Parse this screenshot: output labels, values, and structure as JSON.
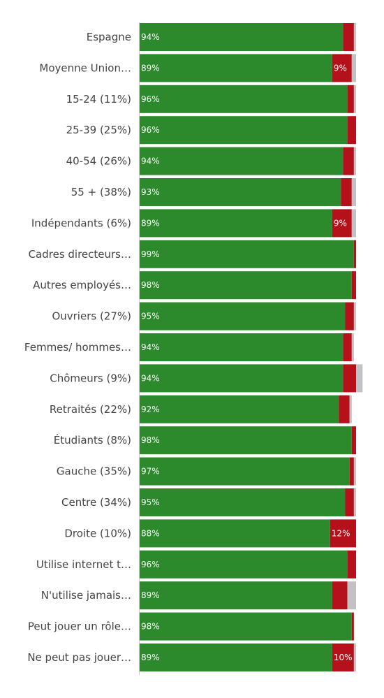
{
  "chart_data": {
    "type": "bar",
    "orientation": "horizontal",
    "stacked": true,
    "normalized": true,
    "grid": false,
    "legend": "none",
    "xlim": [
      0,
      100
    ],
    "categories": [
      "Espagne",
      "Moyenne Union…",
      "15-24 (11%)",
      "25-39 (25%)",
      "40-54 (26%)",
      "55 + (38%)",
      "Indépendants (6%)",
      "Cadres directeurs…",
      "Autres employés…",
      "Ouvriers (27%)",
      "Femmes/ hommes…",
      "Chômeurs (9%)",
      "Retraités (22%)",
      "Étudiants (8%)",
      "Gauche (35%)",
      "Centre (34%)",
      "Droite (10%)",
      "Utilise internet t…",
      "N'utilise jamais…",
      "Peut jouer un rôle…",
      "Ne peut pas jouer…"
    ],
    "series": [
      {
        "color": "#2c8a2c",
        "values": [
          94,
          89,
          96,
          96,
          94,
          93,
          89,
          99,
          98,
          95,
          94,
          94,
          92,
          98,
          97,
          95,
          88,
          96,
          89,
          98,
          89
        ],
        "labels": [
          "94%",
          "89%",
          "96%",
          "96%",
          "94%",
          "93%",
          "89%",
          "99%",
          "98%",
          "95%",
          "94%",
          "94%",
          "92%",
          "98%",
          "97%",
          "95%",
          "88%",
          "96%",
          "89%",
          "98%",
          "89%"
        ]
      },
      {
        "color": "#b5111b",
        "values": [
          5,
          9,
          3,
          4,
          5,
          5,
          9,
          1,
          2,
          4,
          4,
          6,
          5,
          2,
          2,
          4,
          12,
          4,
          7,
          1,
          10
        ],
        "labels": [
          "",
          "9%",
          "",
          "",
          "",
          "",
          "9%",
          "",
          "",
          "",
          "",
          "",
          "",
          "",
          "",
          "",
          "12%",
          "",
          "",
          "",
          "10%"
        ]
      },
      {
        "color": "#c4c1c6",
        "values": [
          1,
          2,
          1,
          0,
          1,
          2,
          2,
          0,
          0,
          1,
          1,
          3,
          1,
          0,
          1,
          1,
          0,
          0,
          4,
          0,
          1
        ],
        "labels": [
          "",
          "",
          "",
          "",
          "",
          "",
          "",
          "",
          "",
          "",
          "",
          "",
          "",
          "",
          "",
          "",
          "",
          "",
          "",
          "",
          ""
        ]
      }
    ]
  }
}
